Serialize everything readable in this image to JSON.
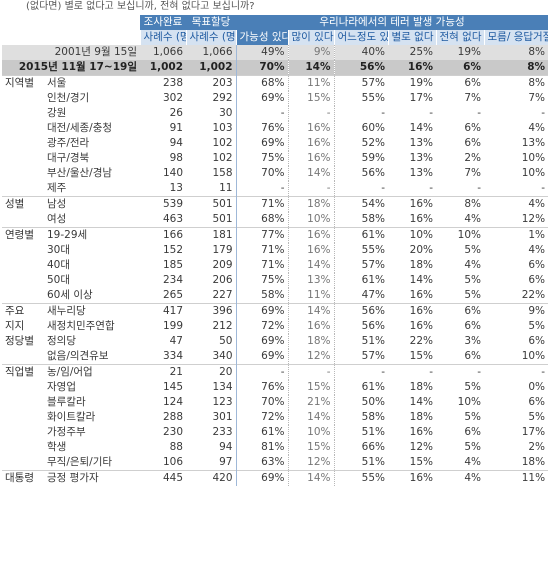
{
  "question": "(없다면) 별로 없다고 보십니까, 전혀 없다고 보십니까?",
  "headers": {
    "col_done": "조사완료",
    "col_target": "목표할당",
    "group_title": "우리나라에서의 테러 발생 가능성",
    "sub": [
      "사례수 (명)",
      "사례수 (명)",
      "가능성 있다(계)",
      "많이 있다",
      "어느정도 있다",
      "별로 없다",
      "전혀 없다",
      "모름/ 응답거절"
    ]
  },
  "rows": [
    {
      "g": "",
      "s": "2001년 9월 15일",
      "v": [
        "1,066",
        "1,066",
        "49%",
        "9%",
        "40%",
        "25%",
        "19%",
        "8%"
      ],
      "cls": "year2001"
    },
    {
      "g": "",
      "s": "2015년 11월 17~19일",
      "v": [
        "1,002",
        "1,002",
        "70%",
        "14%",
        "56%",
        "16%",
        "6%",
        "8%"
      ],
      "cls": "year2015"
    },
    {
      "g": "지역별",
      "s": "서울",
      "v": [
        "238",
        "203",
        "68%",
        "11%",
        "57%",
        "19%",
        "6%",
        "8%"
      ],
      "cls": "grp-start"
    },
    {
      "g": "",
      "s": "인천/경기",
      "v": [
        "302",
        "292",
        "69%",
        "15%",
        "55%",
        "17%",
        "7%",
        "7%"
      ]
    },
    {
      "g": "",
      "s": "강원",
      "v": [
        "26",
        "30",
        "-",
        "-",
        "-",
        "-",
        "-",
        "-"
      ]
    },
    {
      "g": "",
      "s": "대전/세종/충청",
      "v": [
        "91",
        "103",
        "76%",
        "16%",
        "60%",
        "14%",
        "6%",
        "4%"
      ]
    },
    {
      "g": "",
      "s": "광주/전라",
      "v": [
        "94",
        "102",
        "69%",
        "16%",
        "52%",
        "13%",
        "6%",
        "13%"
      ]
    },
    {
      "g": "",
      "s": "대구/경북",
      "v": [
        "98",
        "102",
        "75%",
        "16%",
        "59%",
        "13%",
        "2%",
        "10%"
      ]
    },
    {
      "g": "",
      "s": "부산/울산/경남",
      "v": [
        "140",
        "158",
        "70%",
        "14%",
        "56%",
        "13%",
        "7%",
        "10%"
      ]
    },
    {
      "g": "",
      "s": "제주",
      "v": [
        "13",
        "11",
        "-",
        "-",
        "-",
        "-",
        "-",
        "-"
      ]
    },
    {
      "g": "성별",
      "s": "남성",
      "v": [
        "539",
        "501",
        "71%",
        "18%",
        "54%",
        "16%",
        "8%",
        "4%"
      ],
      "cls": "grp-start"
    },
    {
      "g": "",
      "s": "여성",
      "v": [
        "463",
        "501",
        "68%",
        "10%",
        "58%",
        "16%",
        "4%",
        "12%"
      ]
    },
    {
      "g": "연령별",
      "s": "19-29세",
      "v": [
        "166",
        "181",
        "77%",
        "16%",
        "61%",
        "10%",
        "10%",
        "1%"
      ],
      "cls": "grp-start"
    },
    {
      "g": "",
      "s": "30대",
      "v": [
        "152",
        "179",
        "71%",
        "16%",
        "55%",
        "20%",
        "5%",
        "4%"
      ]
    },
    {
      "g": "",
      "s": "40대",
      "v": [
        "185",
        "209",
        "71%",
        "14%",
        "57%",
        "18%",
        "4%",
        "6%"
      ]
    },
    {
      "g": "",
      "s": "50대",
      "v": [
        "234",
        "206",
        "75%",
        "13%",
        "61%",
        "14%",
        "5%",
        "6%"
      ]
    },
    {
      "g": "",
      "s": "60세 이상",
      "v": [
        "265",
        "227",
        "58%",
        "11%",
        "47%",
        "16%",
        "5%",
        "22%"
      ]
    },
    {
      "g": "주요",
      "s": "새누리당",
      "v": [
        "417",
        "396",
        "69%",
        "14%",
        "56%",
        "16%",
        "6%",
        "9%"
      ],
      "cls": "grp-start"
    },
    {
      "g": "지지",
      "s": "새정치민주연합",
      "v": [
        "199",
        "212",
        "72%",
        "16%",
        "56%",
        "16%",
        "6%",
        "5%"
      ]
    },
    {
      "g": "정당별",
      "s": "정의당",
      "v": [
        "47",
        "50",
        "69%",
        "18%",
        "51%",
        "22%",
        "3%",
        "6%"
      ]
    },
    {
      "g": "",
      "s": "없음/의견유보",
      "v": [
        "334",
        "340",
        "69%",
        "12%",
        "57%",
        "15%",
        "6%",
        "10%"
      ]
    },
    {
      "g": "직업별",
      "s": "농/임/어업",
      "v": [
        "21",
        "20",
        "-",
        "-",
        "-",
        "-",
        "-",
        "-"
      ],
      "cls": "grp-start"
    },
    {
      "g": "",
      "s": "자영업",
      "v": [
        "145",
        "134",
        "76%",
        "15%",
        "61%",
        "18%",
        "5%",
        "0%"
      ]
    },
    {
      "g": "",
      "s": "블루칼라",
      "v": [
        "124",
        "123",
        "70%",
        "21%",
        "50%",
        "14%",
        "10%",
        "6%"
      ]
    },
    {
      "g": "",
      "s": "화이트칼라",
      "v": [
        "288",
        "301",
        "72%",
        "14%",
        "58%",
        "18%",
        "5%",
        "5%"
      ]
    },
    {
      "g": "",
      "s": "가정주부",
      "v": [
        "230",
        "233",
        "61%",
        "10%",
        "51%",
        "16%",
        "6%",
        "17%"
      ]
    },
    {
      "g": "",
      "s": "학생",
      "v": [
        "88",
        "94",
        "81%",
        "15%",
        "66%",
        "12%",
        "5%",
        "2%"
      ]
    },
    {
      "g": "",
      "s": "무직/은퇴/기타",
      "v": [
        "106",
        "97",
        "63%",
        "12%",
        "51%",
        "15%",
        "4%",
        "18%"
      ]
    },
    {
      "g": "대통령",
      "s": "긍정 평가자",
      "v": [
        "445",
        "420",
        "69%",
        "14%",
        "55%",
        "16%",
        "4%",
        "11%"
      ],
      "cls": "grp-start"
    }
  ]
}
